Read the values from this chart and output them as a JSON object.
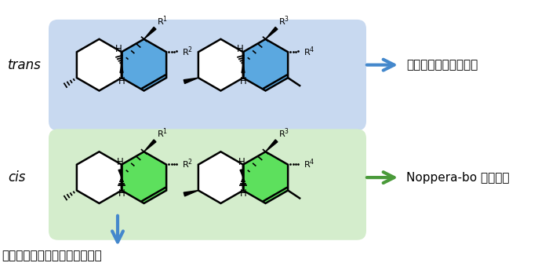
{
  "bg_color": "#ffffff",
  "blue_box_color": "#c8d9f0",
  "green_box_color": "#d4edcc",
  "ring_blue_fill": "#5ba8e0",
  "ring_green_fill": "#5de05d",
  "arrow_blue": "#4488cc",
  "arrow_green": "#4a9a3a",
  "trans_label": "trans",
  "cis_label": "cis",
  "right_text_top": "抗菌活性・抗真菌活性",
  "right_text_bottom": "Noppera-bo 阻害活性",
  "bottom_text": "ミトコンドリア呼吸鎖阻害活性"
}
